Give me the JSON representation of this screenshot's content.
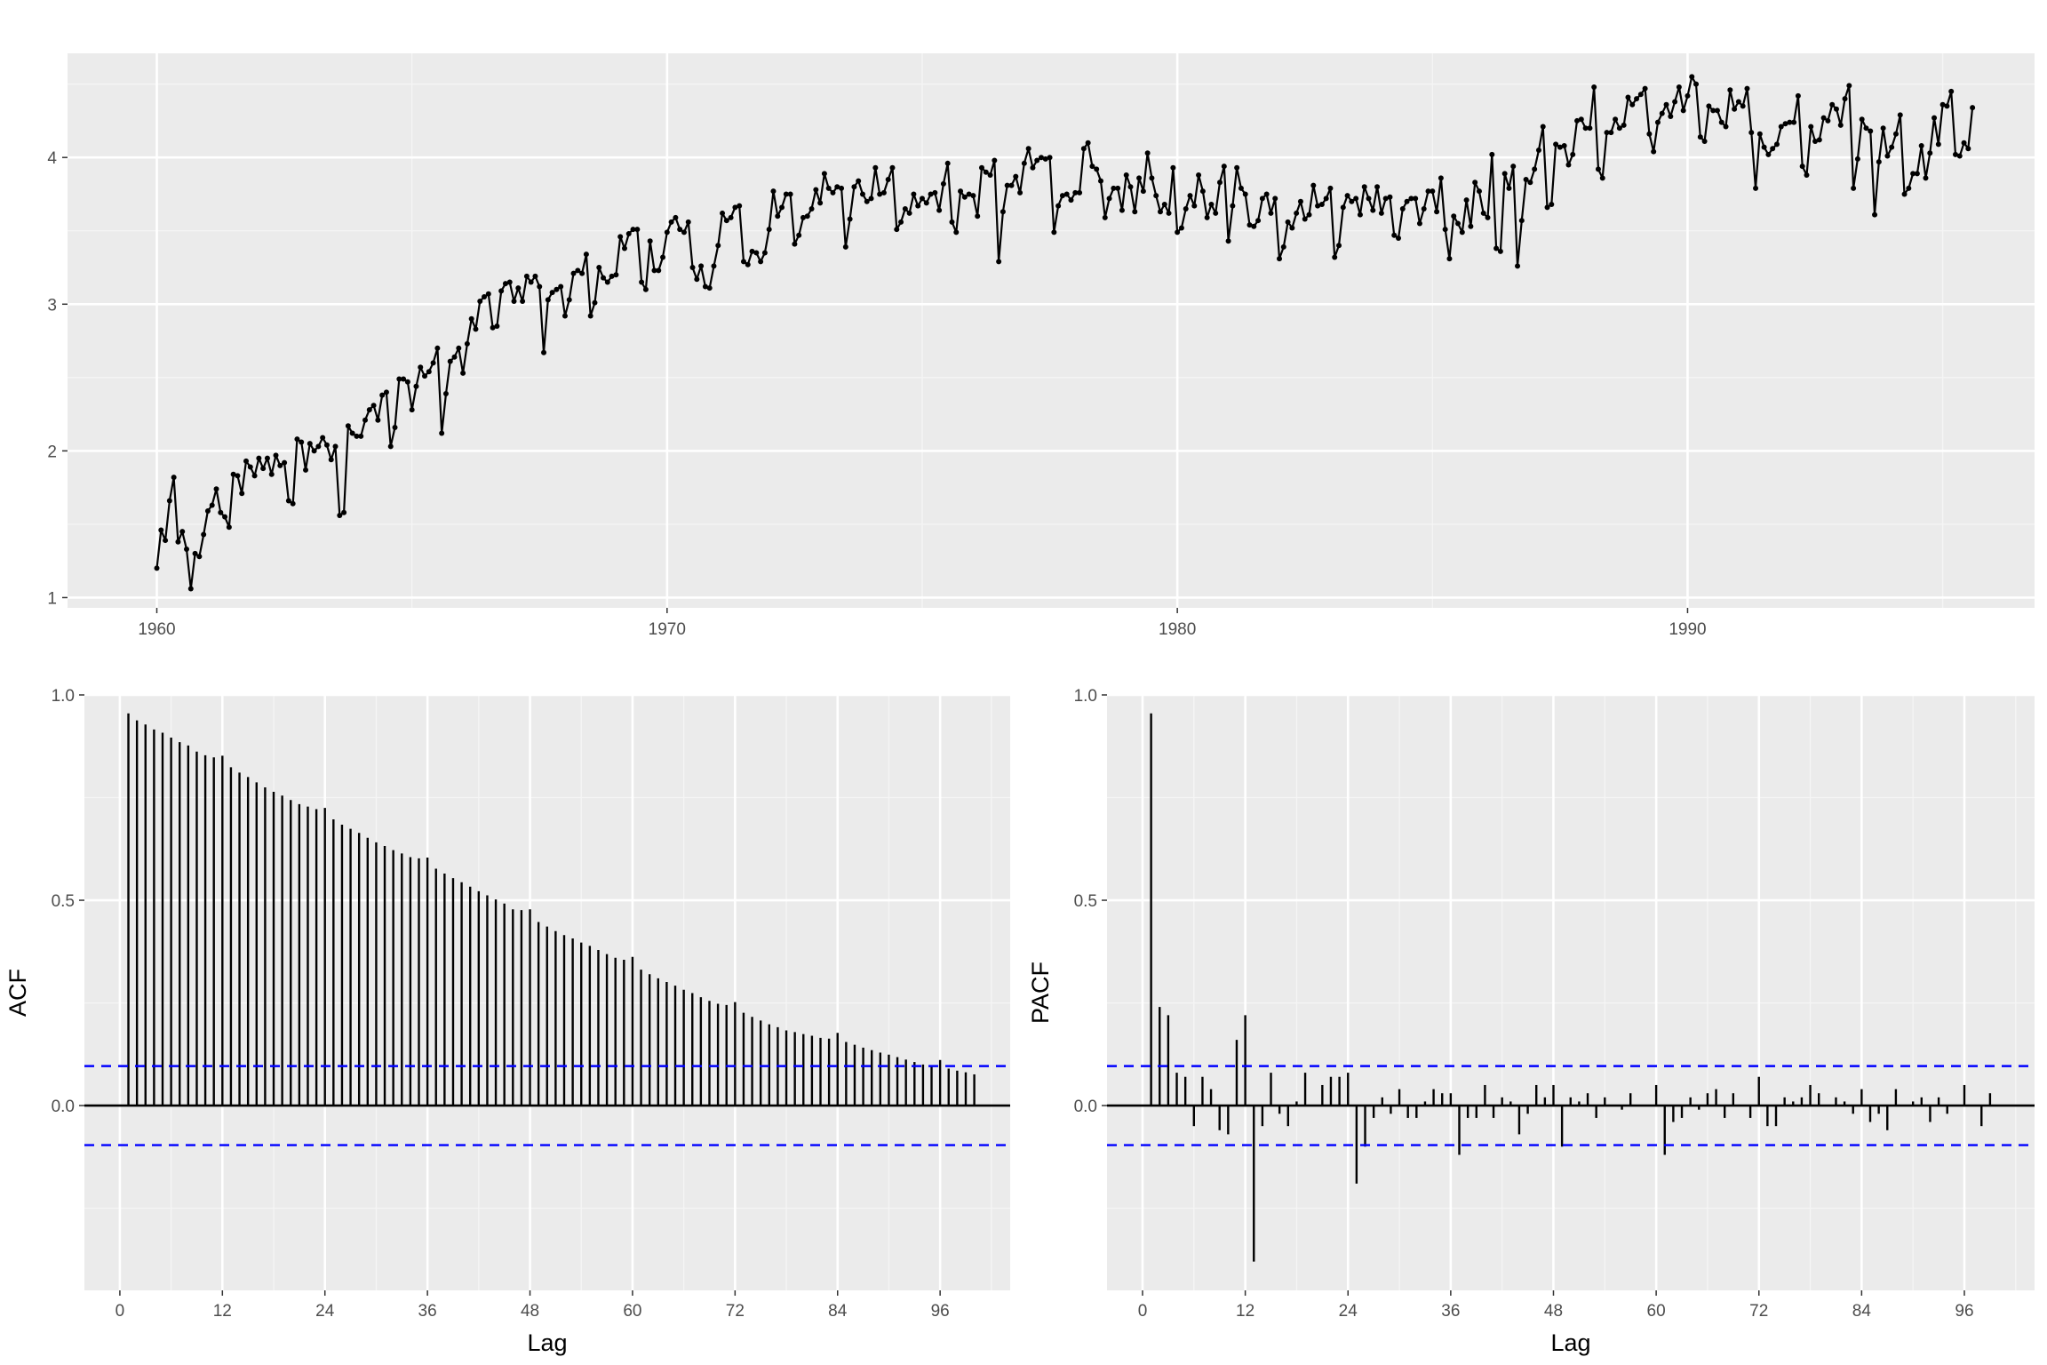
{
  "chart_data": [
    {
      "id": "time-series",
      "type": "line",
      "title": "",
      "xlabel": "",
      "ylabel": "",
      "x_start": 1960.0,
      "x_step": 0.0833333,
      "x_ticks": [
        1960,
        1970,
        1980,
        1990
      ],
      "x_tick_labels": [
        "1960",
        "1970",
        "1980",
        "1990"
      ],
      "y_ticks": [
        1,
        2,
        3,
        4
      ],
      "y_tick_labels": [
        "1",
        "2",
        "3",
        "4"
      ],
      "xlim": [
        1958.25,
        1996.8
      ],
      "ylim": [
        0.93,
        4.71
      ],
      "markers": true,
      "grid": true,
      "values": [
        1.2,
        1.46,
        1.39,
        1.66,
        1.82,
        1.38,
        1.45,
        1.33,
        1.06,
        1.3,
        1.28,
        1.43,
        1.59,
        1.63,
        1.74,
        1.58,
        1.55,
        1.48,
        1.84,
        1.83,
        1.71,
        1.93,
        1.89,
        1.83,
        1.95,
        1.88,
        1.95,
        1.84,
        1.97,
        1.9,
        1.92,
        1.66,
        1.64,
        2.08,
        2.06,
        1.87,
        2.05,
        2.0,
        2.03,
        2.09,
        2.04,
        1.94,
        2.03,
        1.56,
        1.58,
        2.17,
        2.12,
        2.1,
        2.1,
        2.21,
        2.28,
        2.31,
        2.21,
        2.38,
        2.4,
        2.03,
        2.16,
        2.49,
        2.49,
        2.47,
        2.28,
        2.44,
        2.57,
        2.51,
        2.54,
        2.6,
        2.7,
        2.12,
        2.39,
        2.61,
        2.64,
        2.7,
        2.53,
        2.73,
        2.9,
        2.83,
        3.02,
        3.05,
        3.07,
        2.84,
        2.85,
        3.09,
        3.14,
        3.15,
        3.02,
        3.11,
        3.02,
        3.19,
        3.15,
        3.19,
        3.12,
        2.67,
        3.03,
        3.08,
        3.1,
        3.12,
        2.92,
        3.03,
        3.21,
        3.23,
        3.21,
        3.34,
        2.92,
        3.01,
        3.25,
        3.18,
        3.15,
        3.19,
        3.2,
        3.46,
        3.38,
        3.48,
        3.51,
        3.51,
        3.15,
        3.1,
        3.43,
        3.23,
        3.23,
        3.32,
        3.49,
        3.56,
        3.59,
        3.51,
        3.49,
        3.56,
        3.25,
        3.17,
        3.26,
        3.12,
        3.11,
        3.26,
        3.4,
        3.62,
        3.57,
        3.59,
        3.66,
        3.67,
        3.29,
        3.27,
        3.36,
        3.35,
        3.29,
        3.35,
        3.51,
        3.77,
        3.6,
        3.66,
        3.75,
        3.75,
        3.41,
        3.47,
        3.59,
        3.6,
        3.65,
        3.78,
        3.69,
        3.89,
        3.79,
        3.76,
        3.8,
        3.79,
        3.39,
        3.58,
        3.8,
        3.84,
        3.75,
        3.7,
        3.72,
        3.93,
        3.75,
        3.76,
        3.85,
        3.93,
        3.51,
        3.56,
        3.65,
        3.62,
        3.75,
        3.67,
        3.72,
        3.69,
        3.75,
        3.76,
        3.64,
        3.82,
        3.96,
        3.56,
        3.49,
        3.77,
        3.73,
        3.75,
        3.74,
        3.6,
        3.93,
        3.9,
        3.88,
        3.98,
        3.29,
        3.63,
        3.81,
        3.81,
        3.87,
        3.76,
        3.96,
        4.06,
        3.93,
        3.98,
        4.0,
        3.99,
        4.0,
        3.49,
        3.67,
        3.74,
        3.75,
        3.71,
        3.76,
        3.76,
        4.06,
        4.1,
        3.94,
        3.92,
        3.84,
        3.59,
        3.72,
        3.79,
        3.79,
        3.64,
        3.88,
        3.8,
        3.63,
        3.86,
        3.77,
        4.03,
        3.86,
        3.74,
        3.63,
        3.68,
        3.62,
        3.93,
        3.49,
        3.52,
        3.65,
        3.74,
        3.67,
        3.88,
        3.77,
        3.59,
        3.68,
        3.62,
        3.83,
        3.94,
        3.43,
        3.67,
        3.93,
        3.79,
        3.75,
        3.54,
        3.53,
        3.57,
        3.72,
        3.75,
        3.62,
        3.72,
        3.31,
        3.39,
        3.56,
        3.52,
        3.62,
        3.7,
        3.58,
        3.61,
        3.81,
        3.67,
        3.68,
        3.72,
        3.79,
        3.32,
        3.4,
        3.66,
        3.74,
        3.7,
        3.72,
        3.61,
        3.8,
        3.72,
        3.64,
        3.8,
        3.62,
        3.72,
        3.73,
        3.47,
        3.45,
        3.65,
        3.7,
        3.72,
        3.72,
        3.55,
        3.65,
        3.77,
        3.77,
        3.63,
        3.86,
        3.51,
        3.31,
        3.6,
        3.55,
        3.49,
        3.71,
        3.53,
        3.83,
        3.77,
        3.62,
        3.59,
        4.02,
        3.38,
        3.36,
        3.89,
        3.79,
        3.94,
        3.26,
        3.57,
        3.85,
        3.83,
        3.92,
        4.05,
        4.21,
        3.66,
        3.68,
        4.09,
        4.07,
        4.08,
        3.95,
        4.02,
        4.25,
        4.26,
        4.2,
        4.2,
        4.48,
        3.92,
        3.86,
        4.17,
        4.17,
        4.26,
        4.2,
        4.22,
        4.41,
        4.36,
        4.4,
        4.43,
        4.47,
        4.16,
        4.04,
        4.24,
        4.3,
        4.36,
        4.28,
        4.38,
        4.48,
        4.32,
        4.42,
        4.55,
        4.5,
        4.14,
        4.11,
        4.35,
        4.32,
        4.32,
        4.24,
        4.21,
        4.46,
        4.33,
        4.38,
        4.35,
        4.47,
        4.17,
        3.79,
        4.16,
        4.07,
        4.02,
        4.06,
        4.09,
        4.21,
        4.23,
        4.24,
        4.24,
        4.42,
        3.94,
        3.88,
        4.21,
        4.11,
        4.12,
        4.27,
        4.25,
        4.36,
        4.33,
        4.22,
        4.4,
        4.49,
        3.79,
        3.99,
        4.26,
        4.2,
        4.18,
        3.61,
        3.97,
        4.2,
        4.01,
        4.07,
        4.16,
        4.29,
        3.75,
        3.79,
        3.89,
        3.89,
        4.08,
        3.86,
        4.03,
        4.27,
        4.09,
        4.36,
        4.35,
        4.45,
        4.02,
        4.01,
        4.1,
        4.06,
        4.34
      ]
    },
    {
      "id": "acf",
      "type": "bar",
      "title": "",
      "xlabel": "Lag",
      "ylabel": "ACF",
      "x_ticks": [
        0,
        12,
        24,
        36,
        48,
        60,
        72,
        84,
        96
      ],
      "x_tick_labels": [
        "0",
        "12",
        "24",
        "36",
        "48",
        "60",
        "72",
        "84",
        "96"
      ],
      "y_ticks": [
        0.0,
        0.5,
        1.0
      ],
      "y_tick_labels": [
        "0.0",
        "0.5",
        "1.0"
      ],
      "xlim": [
        -4.15,
        104.2
      ],
      "ylim": [
        -0.45,
        1.0
      ],
      "ci": 0.0962,
      "lags_start": 1,
      "values": [
        0.955,
        0.938,
        0.928,
        0.916,
        0.908,
        0.896,
        0.885,
        0.877,
        0.862,
        0.853,
        0.848,
        0.852,
        0.824,
        0.811,
        0.8,
        0.787,
        0.775,
        0.764,
        0.755,
        0.744,
        0.734,
        0.728,
        0.722,
        0.725,
        0.697,
        0.684,
        0.674,
        0.664,
        0.652,
        0.641,
        0.632,
        0.622,
        0.614,
        0.605,
        0.602,
        0.604,
        0.577,
        0.565,
        0.554,
        0.544,
        0.533,
        0.522,
        0.512,
        0.502,
        0.492,
        0.478,
        0.476,
        0.478,
        0.447,
        0.436,
        0.425,
        0.415,
        0.407,
        0.397,
        0.389,
        0.379,
        0.369,
        0.36,
        0.355,
        0.362,
        0.331,
        0.32,
        0.31,
        0.301,
        0.292,
        0.282,
        0.274,
        0.264,
        0.255,
        0.248,
        0.245,
        0.252,
        0.226,
        0.216,
        0.207,
        0.198,
        0.191,
        0.183,
        0.179,
        0.174,
        0.17,
        0.165,
        0.163,
        0.177,
        0.155,
        0.148,
        0.141,
        0.135,
        0.129,
        0.124,
        0.118,
        0.112,
        0.106,
        0.1,
        0.098,
        0.111,
        0.09,
        0.085,
        0.081,
        0.076
      ]
    },
    {
      "id": "pacf",
      "type": "bar",
      "title": "",
      "xlabel": "Lag",
      "ylabel": "PACF",
      "x_ticks": [
        0,
        12,
        24,
        36,
        48,
        60,
        72,
        84,
        96
      ],
      "x_tick_labels": [
        "0",
        "12",
        "24",
        "36",
        "48",
        "60",
        "72",
        "84",
        "96"
      ],
      "y_ticks": [
        0.0,
        0.5,
        1.0
      ],
      "y_tick_labels": [
        "0.0",
        "0.5",
        "1.0"
      ],
      "xlim": [
        -4.15,
        104.2
      ],
      "ylim": [
        -0.45,
        1.0
      ],
      "ci": 0.0962,
      "lags_start": 1,
      "values": [
        0.955,
        0.24,
        0.22,
        0.08,
        0.07,
        -0.05,
        0.07,
        0.04,
        -0.06,
        -0.07,
        0.16,
        0.22,
        -0.38,
        -0.05,
        0.08,
        -0.02,
        -0.05,
        0.01,
        0.08,
        0.0,
        0.05,
        0.07,
        0.07,
        0.08,
        -0.19,
        -0.1,
        -0.03,
        0.02,
        -0.02,
        0.04,
        -0.03,
        -0.03,
        0.01,
        0.04,
        0.03,
        0.03,
        -0.12,
        -0.03,
        -0.03,
        0.05,
        -0.03,
        0.02,
        0.01,
        -0.07,
        -0.02,
        0.05,
        0.02,
        0.05,
        -0.1,
        0.02,
        0.01,
        0.03,
        -0.03,
        0.02,
        0.0,
        -0.01,
        0.03,
        0.0,
        0.0,
        0.05,
        -0.12,
        -0.04,
        -0.03,
        0.02,
        -0.01,
        0.03,
        0.04,
        -0.03,
        0.03,
        0.0,
        -0.03,
        0.07,
        -0.05,
        -0.05,
        0.02,
        0.01,
        0.02,
        0.05,
        0.03,
        0.0,
        0.02,
        0.01,
        -0.02,
        0.04,
        -0.04,
        -0.02,
        -0.06,
        0.04,
        0.0,
        0.01,
        0.02,
        -0.04,
        0.02,
        -0.02,
        0.0,
        0.05,
        0.0,
        -0.05,
        0.03,
        0.0
      ]
    }
  ]
}
